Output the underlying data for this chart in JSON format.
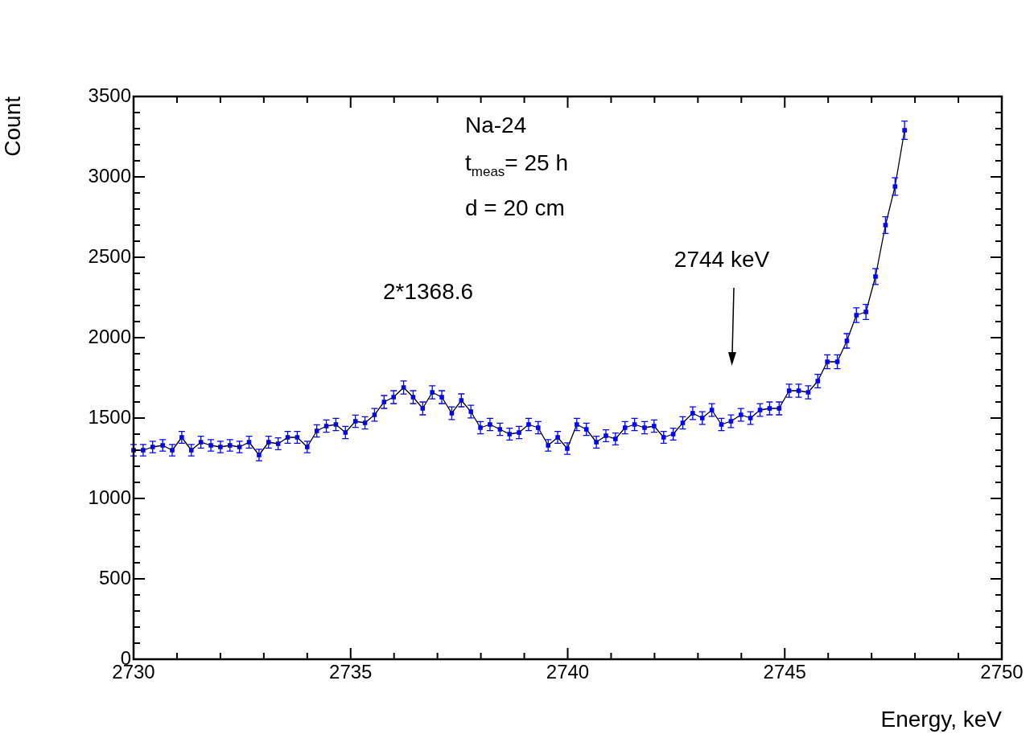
{
  "chart_data": {
    "type": "line",
    "xlabel": "Energy, keV",
    "ylabel": "Count",
    "marker": "square",
    "grid": false,
    "legend": false,
    "xlim": [
      2730,
      2750
    ],
    "ylim": [
      0,
      3500
    ],
    "xticks": [
      2730,
      {
        "value": 2731,
        "label": null
      },
      {
        "value": 2732,
        "label": null
      },
      {
        "value": 2733,
        "label": null
      },
      {
        "value": 2734,
        "label": null
      },
      2735,
      {
        "value": 2736,
        "label": null
      },
      {
        "value": 2737,
        "label": null
      },
      {
        "value": 2738,
        "label": null
      },
      {
        "value": 2739,
        "label": null
      },
      2740,
      {
        "value": 2741,
        "label": null
      },
      {
        "value": 2742,
        "label": null
      },
      {
        "value": 2743,
        "label": null
      },
      {
        "value": 2744,
        "label": null
      },
      2745,
      {
        "value": 2746,
        "label": null
      },
      {
        "value": 2747,
        "label": null
      },
      {
        "value": 2748,
        "label": null
      },
      {
        "value": 2749,
        "label": null
      },
      2750
    ],
    "yticks": [
      0,
      {
        "value": 100,
        "label": null
      },
      {
        "value": 200,
        "label": null
      },
      {
        "value": 300,
        "label": null
      },
      {
        "value": 400,
        "label": null
      },
      500,
      {
        "value": 600,
        "label": null
      },
      {
        "value": 700,
        "label": null
      },
      {
        "value": 800,
        "label": null
      },
      {
        "value": 900,
        "label": null
      },
      1000,
      {
        "value": 1100,
        "label": null
      },
      {
        "value": 1200,
        "label": null
      },
      {
        "value": 1300,
        "label": null
      },
      {
        "value": 1400,
        "label": null
      },
      1500,
      {
        "value": 1600,
        "label": null
      },
      {
        "value": 1700,
        "label": null
      },
      {
        "value": 1800,
        "label": null
      },
      {
        "value": 1900,
        "label": null
      },
      2000,
      {
        "value": 2100,
        "label": null
      },
      {
        "value": 2200,
        "label": null
      },
      {
        "value": 2300,
        "label": null
      },
      {
        "value": 2400,
        "label": null
      },
      2500,
      {
        "value": 2600,
        "label": null
      },
      {
        "value": 2700,
        "label": null
      },
      {
        "value": 2800,
        "label": null
      },
      {
        "value": 2900,
        "label": null
      },
      3000,
      {
        "value": 3100,
        "label": null
      },
      {
        "value": 3200,
        "label": null
      },
      {
        "value": 3300,
        "label": null
      },
      {
        "value": 3400,
        "label": null
      },
      3500
    ],
    "x": [
      2730.0,
      2730.22,
      2730.44,
      2730.67,
      2730.89,
      2731.11,
      2731.33,
      2731.55,
      2731.78,
      2732.0,
      2732.22,
      2732.44,
      2732.66,
      2732.89,
      2733.11,
      2733.33,
      2733.55,
      2733.77,
      2734.0,
      2734.22,
      2734.44,
      2734.66,
      2734.88,
      2735.11,
      2735.33,
      2735.55,
      2735.77,
      2735.99,
      2736.22,
      2736.44,
      2736.66,
      2736.88,
      2737.1,
      2737.33,
      2737.55,
      2737.77,
      2737.99,
      2738.21,
      2738.44,
      2738.66,
      2738.88,
      2739.1,
      2739.32,
      2739.55,
      2739.77,
      2739.99,
      2740.21,
      2740.43,
      2740.66,
      2740.88,
      2741.1,
      2741.32,
      2741.54,
      2741.77,
      2741.99,
      2742.21,
      2742.43,
      2742.65,
      2742.88,
      2743.1,
      2743.32,
      2743.54,
      2743.76,
      2743.99,
      2744.21,
      2744.43,
      2744.65,
      2744.87,
      2745.1,
      2745.32,
      2745.54,
      2745.76,
      2745.98,
      2746.21,
      2746.43,
      2746.65,
      2746.87,
      2747.09,
      2747.32,
      2747.54,
      2747.76
    ],
    "series": [
      {
        "color": "#0000ff",
        "values": [
          1300,
          1300,
          1320,
          1330,
          1300,
          1380,
          1300,
          1350,
          1330,
          1320,
          1330,
          1320,
          1350,
          1270,
          1350,
          1340,
          1380,
          1380,
          1320,
          1420,
          1450,
          1460,
          1410,
          1480,
          1470,
          1520,
          1600,
          1630,
          1690,
          1630,
          1560,
          1660,
          1630,
          1530,
          1610,
          1540,
          1440,
          1460,
          1430,
          1400,
          1410,
          1460,
          1440,
          1330,
          1380,
          1310,
          1460,
          1430,
          1350,
          1390,
          1370,
          1440,
          1460,
          1440,
          1450,
          1380,
          1400,
          1470,
          1530,
          1500,
          1550,
          1460,
          1480,
          1520,
          1500,
          1550,
          1560,
          1560,
          1670,
          1670,
          1660,
          1730,
          1850,
          1850,
          1980,
          2140,
          2160,
          2380,
          2700,
          2940,
          3290
        ],
        "errors": [
          36,
          36,
          36,
          36,
          36,
          37,
          36,
          37,
          36,
          36,
          36,
          36,
          37,
          36,
          37,
          37,
          37,
          37,
          36,
          38,
          38,
          38,
          38,
          38,
          38,
          39,
          40,
          40,
          41,
          40,
          40,
          41,
          40,
          39,
          40,
          39,
          38,
          38,
          38,
          37,
          38,
          38,
          38,
          36,
          37,
          36,
          38,
          38,
          37,
          37,
          37,
          38,
          38,
          38,
          38,
          37,
          37,
          38,
          39,
          39,
          39,
          38,
          39,
          39,
          39,
          39,
          40,
          40,
          41,
          41,
          41,
          42,
          43,
          43,
          45,
          46,
          47,
          49,
          52,
          54,
          57
        ]
      }
    ],
    "annotations": [
      "Na-24",
      "t$_{meas}$= 25 h",
      "d = 20 cm",
      "2*1368.6",
      "2744 keV"
    ]
  }
}
